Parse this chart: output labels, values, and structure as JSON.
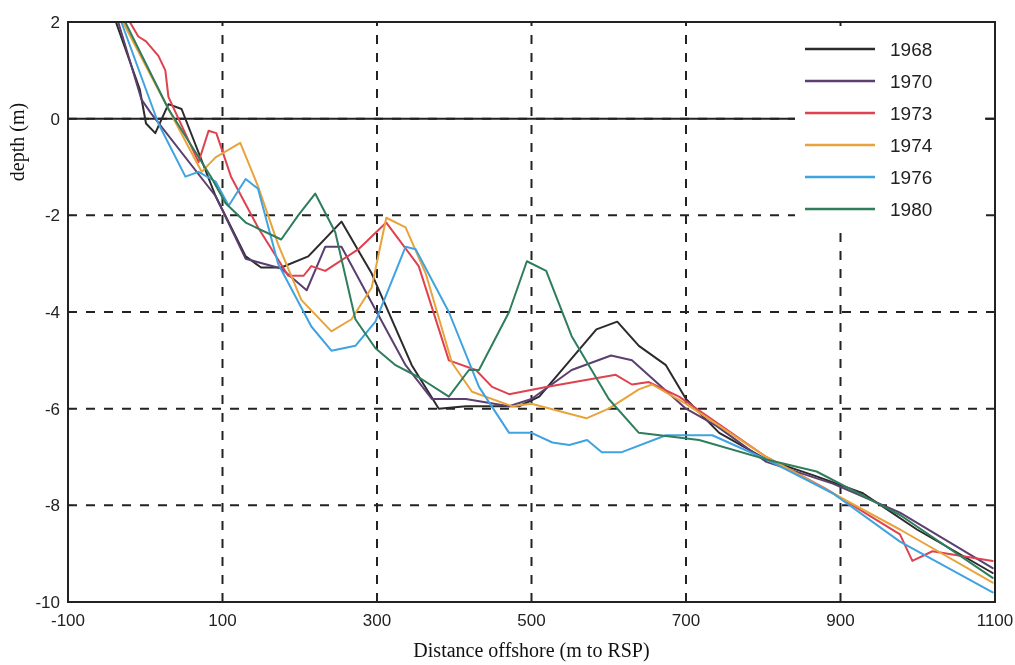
{
  "chart_data": {
    "type": "line",
    "xlabel": "Distance offshore (m to RSP)",
    "ylabel": "depth (m)",
    "xlim": [
      -100,
      1100
    ],
    "xticks": [
      -100,
      100,
      300,
      500,
      700,
      900,
      1100
    ],
    "ylim": [
      -10,
      2
    ],
    "yticks": [
      -10,
      -8,
      -6,
      -4,
      -2,
      0,
      2
    ],
    "grid": true,
    "legend": "top right",
    "line_style": "solid",
    "ref_lines": [
      {
        "axis": "y",
        "value": 0,
        "color": "#222222",
        "line_style": "solid"
      }
    ],
    "series": [
      {
        "name": "1968",
        "color": "#2b2b2b",
        "x": [
          -38,
          -7,
          1,
          13,
          30,
          47,
          91,
          130,
          150,
          176,
          211,
          254,
          293,
          345,
          380,
          415,
          484,
          510,
          584,
          611,
          639,
          674,
          700,
          743,
          804,
          869,
          929,
          999,
          1097
        ],
        "values": [
          2,
          0.6,
          -0.1,
          -0.3,
          0.3,
          0.2,
          -1.6,
          -2.85,
          -3.08,
          -3.08,
          -2.85,
          -2.13,
          -3.2,
          -5.1,
          -6.0,
          -5.95,
          -5.95,
          -5.75,
          -4.36,
          -4.2,
          -4.7,
          -5.1,
          -5.8,
          -6.5,
          -7.05,
          -7.4,
          -7.75,
          -8.5,
          -9.4
        ]
      },
      {
        "name": "1970",
        "color": "#5b3f70",
        "x": [
          -35,
          -5,
          8,
          91,
          130,
          176,
          209,
          233,
          254,
          276,
          337,
          371,
          415,
          471,
          500,
          552,
          603,
          630,
          700,
          739,
          804,
          890,
          977,
          1097
        ],
        "values": [
          2,
          0.4,
          0.1,
          -1.6,
          -2.9,
          -3.1,
          -3.55,
          -2.65,
          -2.65,
          -3.3,
          -5.1,
          -5.8,
          -5.8,
          -5.95,
          -5.8,
          -5.2,
          -4.9,
          -5.0,
          -6.0,
          -6.35,
          -7.1,
          -7.55,
          -8.15,
          -9.3
        ]
      },
      {
        "name": "1973",
        "color": "#e0414f",
        "x": [
          -20,
          -9,
          1,
          17,
          26,
          30,
          43,
          69,
          82,
          92,
          111,
          146,
          185,
          205,
          215,
          233,
          276,
          312,
          354,
          393,
          428,
          449,
          471,
          519,
          609,
          630,
          652,
          691,
          804,
          880,
          977,
          993,
          1019,
          1097
        ],
        "values": [
          2,
          1.7,
          1.6,
          1.3,
          1.0,
          0.45,
          0,
          -0.9,
          -0.25,
          -0.3,
          -1.2,
          -2.25,
          -3.25,
          -3.25,
          -3.05,
          -3.15,
          -2.7,
          -2.15,
          -3.05,
          -5.0,
          -5.2,
          -5.55,
          -5.7,
          -5.55,
          -5.3,
          -5.5,
          -5.45,
          -5.75,
          -7.0,
          -7.65,
          -8.6,
          -9.15,
          -8.95,
          -9.15
        ]
      },
      {
        "name": "1974",
        "color": "#e8a33a",
        "x": [
          -29,
          30,
          73,
          91,
          123,
          146,
          172,
          202,
          241,
          267,
          293,
          312,
          337,
          363,
          397,
          423,
          475,
          500,
          571,
          600,
          639,
          656,
          700,
          804,
          890,
          977,
          1097
        ],
        "values": [
          2,
          0.2,
          -1.1,
          -0.8,
          -0.5,
          -1.4,
          -2.6,
          -3.75,
          -4.4,
          -4.15,
          -3.5,
          -2.05,
          -2.25,
          -3.2,
          -5.05,
          -5.65,
          -5.95,
          -5.9,
          -6.2,
          -6.0,
          -5.6,
          -5.5,
          -5.9,
          -7.0,
          -7.75,
          -8.5,
          -9.6
        ]
      },
      {
        "name": "1976",
        "color": "#3fa3e0",
        "x": [
          -31,
          17,
          52,
          69,
          91,
          108,
          130,
          146,
          172,
          215,
          241,
          272,
          298,
          337,
          350,
          393,
          432,
          471,
          500,
          527,
          549,
          572,
          591,
          617,
          674,
          734,
          804,
          890,
          977,
          1097
        ],
        "values": [
          2,
          -0.1,
          -1.2,
          -1.1,
          -1.3,
          -1.8,
          -1.25,
          -1.45,
          -3.0,
          -4.3,
          -4.8,
          -4.7,
          -4.2,
          -2.65,
          -2.7,
          -4.0,
          -5.55,
          -6.5,
          -6.5,
          -6.7,
          -6.75,
          -6.65,
          -6.9,
          -6.9,
          -6.55,
          -6.55,
          -7.05,
          -7.75,
          -8.75,
          -9.8
        ]
      },
      {
        "name": "1980",
        "color": "#2e7d5b",
        "x": [
          -26,
          30,
          85,
          104,
          130,
          176,
          198,
          220,
          246,
          272,
          298,
          324,
          354,
          393,
          419,
          432,
          471,
          494,
          519,
          552,
          600,
          639,
          717,
          804,
          869,
          977,
          1097
        ],
        "values": [
          2,
          0.2,
          -1.2,
          -1.75,
          -2.15,
          -2.5,
          -2.0,
          -1.55,
          -2.35,
          -4.15,
          -4.75,
          -5.1,
          -5.35,
          -5.75,
          -5.2,
          -5.2,
          -4.0,
          -2.95,
          -3.15,
          -4.5,
          -5.8,
          -6.5,
          -6.65,
          -7.05,
          -7.3,
          -8.2,
          -9.5
        ]
      }
    ]
  }
}
